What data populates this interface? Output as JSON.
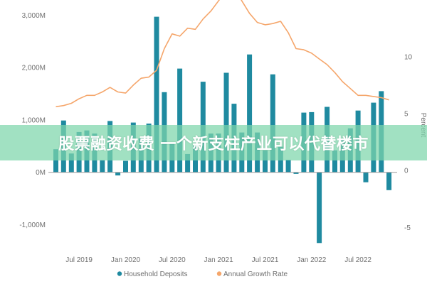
{
  "chart_data": {
    "type": "bar",
    "series": [
      {
        "name": "Household Deposits",
        "type": "bar",
        "axis": "left",
        "color": "#1f8aa0",
        "x": [
          2019.25,
          2019.333,
          2019.417,
          2019.5,
          2019.583,
          2019.667,
          2019.75,
          2019.833,
          2019.917,
          2020.0,
          2020.083,
          2020.167,
          2020.25,
          2020.333,
          2020.417,
          2020.5,
          2020.583,
          2020.667,
          2020.75,
          2020.833,
          2020.917,
          2021.0,
          2021.083,
          2021.167,
          2021.25,
          2021.333,
          2021.417,
          2021.5,
          2021.583,
          2021.667,
          2021.75,
          2021.833,
          2021.917,
          2022.0,
          2022.083,
          2022.167,
          2022.25,
          2022.333,
          2022.417,
          2022.5,
          2022.583,
          2022.667,
          2022.75,
          2022.833
        ],
        "values": [
          440,
          990,
          360,
          770,
          800,
          740,
          230,
          980,
          -60,
          220,
          950,
          650,
          930,
          2970,
          1530,
          560,
          1980,
          350,
          510,
          1730,
          740,
          740,
          1900,
          1310,
          760,
          2250,
          760,
          420,
          1870,
          490,
          240,
          -30,
          1140,
          1150,
          -1350,
          1250,
          420,
          640,
          840,
          1180,
          -190,
          1330,
          1550,
          -340
        ]
      },
      {
        "name": "Annual Growth Rate",
        "type": "line",
        "axis": "right",
        "color": "#f5a66b",
        "x": [
          2019.25,
          2019.333,
          2019.417,
          2019.5,
          2019.583,
          2019.667,
          2019.75,
          2019.833,
          2019.917,
          2020.0,
          2020.083,
          2020.167,
          2020.25,
          2020.333,
          2020.417,
          2020.5,
          2020.583,
          2020.667,
          2020.75,
          2020.833,
          2020.917,
          2021.0,
          2021.083,
          2021.167,
          2021.25,
          2021.333,
          2021.417,
          2021.5,
          2021.583,
          2021.667,
          2021.75,
          2021.833,
          2021.917,
          2022.0,
          2022.083,
          2022.167,
          2022.25,
          2022.333,
          2022.417,
          2022.5,
          2022.583,
          2022.667,
          2022.75,
          2022.833
        ],
        "values": [
          5.6,
          5.7,
          5.9,
          6.3,
          6.6,
          6.6,
          6.9,
          7.3,
          6.9,
          6.8,
          7.5,
          8.1,
          8.2,
          8.8,
          10.7,
          12.0,
          11.8,
          12.5,
          12.4,
          13.3,
          14.0,
          14.9,
          15.8,
          16.1,
          14.9,
          13.8,
          13.0,
          12.8,
          12.9,
          13.1,
          12.1,
          10.7,
          10.6,
          10.3,
          9.8,
          9.3,
          8.6,
          7.8,
          7.2,
          6.6,
          6.6,
          6.5,
          6.4,
          6.2
        ]
      }
    ],
    "x_ticks": [
      {
        "x": 2019.5,
        "label": "Jul 2019"
      },
      {
        "x": 2020.0,
        "label": "Jan 2020"
      },
      {
        "x": 2020.5,
        "label": "Jul 2020"
      },
      {
        "x": 2021.0,
        "label": "Jan 2021"
      },
      {
        "x": 2021.5,
        "label": "Jul 2021"
      },
      {
        "x": 2022.0,
        "label": "Jan 2022"
      },
      {
        "x": 2022.5,
        "label": "Jul 2022"
      }
    ],
    "y_left": {
      "ticks": [
        3000,
        2000,
        1000,
        0,
        -1000
      ],
      "tick_labels": [
        "3,000M",
        "2,000M",
        "1,000M",
        "0M",
        "-1,000M"
      ],
      "ylim": [
        -1400,
        3100
      ]
    },
    "y_right": {
      "label": "Percent",
      "ticks": [
        10,
        5,
        0,
        -5
      ],
      "tick_labels": [
        "10",
        "5",
        "0",
        "-5"
      ],
      "ylim": [
        -6.6,
        14.1
      ]
    },
    "xlim": [
      2019.17,
      2022.92
    ],
    "legend": {
      "position": "bottom-center",
      "items": [
        "Household Deposits",
        "Annual Growth Rate"
      ]
    },
    "grid": false
  },
  "overlay_banner": {
    "text": "股票融资收费 一个新支柱产业可以代替楼市",
    "color": "#7dd6aa"
  }
}
